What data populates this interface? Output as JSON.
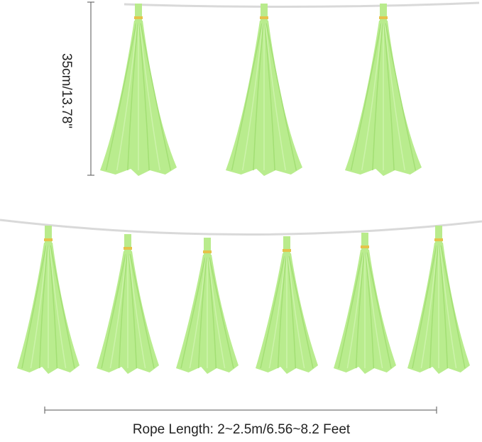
{
  "dimensions": {
    "height_label": "35cm/13.78\"",
    "rope_label": "Rope Length: 2~2.5m/6.56~8.2 Feet"
  }
}
